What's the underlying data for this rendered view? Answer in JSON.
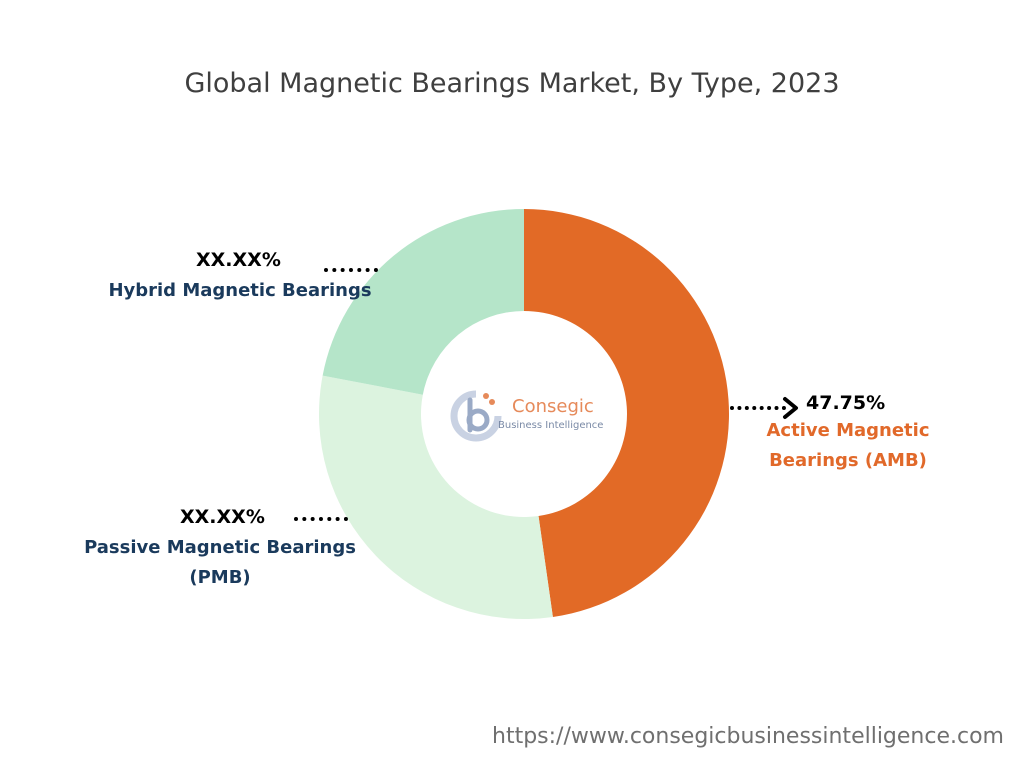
{
  "chart_data": {
    "type": "pie",
    "title": "Global Magnetic Bearings Market, By Type, 2023",
    "slices": [
      {
        "label": "Active Magnetic Bearings (AMB)",
        "display_label": "Active Magnetic\nBearings (AMB)",
        "value": 47.75,
        "value_text": "47.75%",
        "color": "#e26a26"
      },
      {
        "label": "Passive Magnetic Bearings (PMB)",
        "display_label": "Passive Magnetic Bearings\n(PMB)",
        "value": 30.25,
        "value_text": "XX.XX%",
        "color": "#dcf3df"
      },
      {
        "label": "Hybrid Magnetic Bearings",
        "display_label": "Hybrid Magnetic Bearings",
        "value": 22.0,
        "value_text": "XX.XX%",
        "color": "#b5e5c9"
      }
    ],
    "donut": true,
    "legend": "none"
  },
  "colors": {
    "active_label": "#e1692a",
    "other_label": "#1a3a5c"
  },
  "logo": {
    "name": "Consegic",
    "tagline": "Business Intelligence"
  },
  "footer": {
    "url": "https://www.consegicbusinessintelligence.com"
  }
}
